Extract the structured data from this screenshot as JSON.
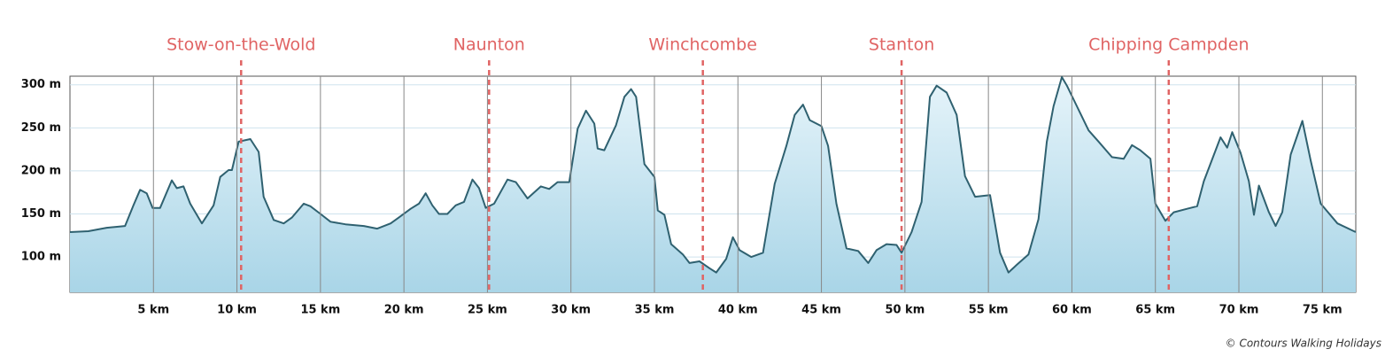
{
  "chart_data": {
    "type": "area",
    "x": [
      0,
      1.1,
      2.2,
      3.3,
      3.8,
      4.2,
      4.6,
      4.95,
      5.4,
      6.1,
      6.4,
      6.8,
      7.2,
      7.9,
      8.6,
      9.0,
      9.5,
      9.7,
      10.1,
      10.8,
      11.3,
      11.6,
      12.2,
      12.8,
      13.3,
      14.0,
      14.4,
      15.0,
      15.6,
      16.5,
      17.6,
      18.4,
      19.2,
      19.7,
      20.4,
      20.9,
      21.3,
      21.7,
      22.1,
      22.6,
      23.1,
      23.6,
      24.1,
      24.5,
      24.9,
      25.4,
      26.2,
      26.7,
      27.4,
      28.2,
      28.7,
      29.2,
      29.9,
      30.4,
      30.9,
      31.4,
      31.6,
      32.0,
      32.7,
      33.2,
      33.6,
      33.9,
      34.4,
      35.0,
      35.2,
      35.6,
      36.0,
      36.7,
      37.1,
      37.7,
      38.3,
      38.7,
      39.3,
      39.7,
      40.1,
      40.8,
      41.5,
      42.2,
      42.9,
      43.4,
      43.9,
      44.3,
      45.0,
      45.4,
      45.9,
      46.5,
      47.2,
      47.8,
      48.3,
      48.9,
      49.5,
      49.8,
      50.4,
      51.0,
      51.5,
      51.9,
      52.5,
      53.1,
      53.6,
      54.2,
      55.1,
      55.7,
      56.2,
      56.7,
      57.4,
      58.0,
      58.5,
      58.9,
      59.4,
      59.7,
      60.3,
      61.0,
      61.6,
      62.4,
      63.1,
      63.6,
      64.1,
      64.7,
      65.0,
      65.6,
      66.1,
      66.9,
      67.5,
      67.9,
      68.9,
      69.3,
      69.6,
      70.1,
      70.6,
      70.9,
      71.2,
      71.8,
      72.2,
      72.6,
      73.1,
      73.8,
      74.3,
      74.9,
      75.9,
      77.0
    ],
    "values": [
      129,
      130,
      134,
      136,
      160,
      178,
      174,
      157,
      157,
      189,
      180,
      182,
      162,
      139,
      160,
      193,
      201,
      201,
      234,
      237,
      222,
      170,
      143,
      139,
      146,
      162,
      159,
      150,
      141,
      138,
      136,
      133,
      139,
      146,
      156,
      162,
      174,
      160,
      150,
      150,
      160,
      164,
      190,
      180,
      157,
      162,
      190,
      187,
      168,
      182,
      179,
      187,
      187,
      249,
      270,
      255,
      226,
      224,
      253,
      286,
      295,
      286,
      208,
      193,
      154,
      149,
      115,
      103,
      93,
      95,
      87,
      82,
      98,
      123,
      108,
      100,
      105,
      185,
      229,
      265,
      277,
      259,
      252,
      229,
      162,
      110,
      107,
      93,
      108,
      115,
      114,
      105,
      129,
      164,
      286,
      299,
      291,
      265,
      194,
      170,
      172,
      105,
      82,
      91,
      103,
      144,
      234,
      275,
      309,
      299,
      275,
      247,
      234,
      216,
      214,
      230,
      224,
      214,
      162,
      142,
      152,
      156,
      159,
      188,
      239,
      227,
      245,
      221,
      188,
      149,
      183,
      152,
      136,
      152,
      219,
      258,
      212,
      162,
      139,
      129
    ],
    "color": "#2f6170",
    "xlim": [
      0,
      77
    ],
    "ylim": [
      59,
      310
    ],
    "xticks": [
      {
        "value": 5,
        "label": "5 km"
      },
      {
        "value": 10,
        "label": "10 km"
      },
      {
        "value": 15,
        "label": "15 km"
      },
      {
        "value": 20,
        "label": "20 km"
      },
      {
        "value": 25,
        "label": "25 km"
      },
      {
        "value": 30,
        "label": "30 km"
      },
      {
        "value": 35,
        "label": "35 km"
      },
      {
        "value": 40,
        "label": "40 km"
      },
      {
        "value": 45,
        "label": "45 km"
      },
      {
        "value": 50,
        "label": "50 km"
      },
      {
        "value": 55,
        "label": "55 km"
      },
      {
        "value": 60,
        "label": "60 km"
      },
      {
        "value": 65,
        "label": "65 km"
      },
      {
        "value": 70,
        "label": "70 km"
      },
      {
        "value": 75,
        "label": "75 km"
      }
    ],
    "yticks": [
      {
        "value": 100,
        "label": "100 m"
      },
      {
        "value": 150,
        "label": "150 m"
      },
      {
        "value": 200,
        "label": "200 m"
      },
      {
        "value": 250,
        "label": "250 m"
      },
      {
        "value": 300,
        "label": "300 m"
      }
    ],
    "markers": [
      {
        "label": "Stow-on-the-Wold",
        "x": 10.25
      },
      {
        "label": "Naunton",
        "x": 25.1
      },
      {
        "label": "Winchcombe",
        "x": 37.9
      },
      {
        "label": "Stanton",
        "x": 49.8
      },
      {
        "label": "Chipping Campden",
        "x": 65.8
      }
    ],
    "marker_color": "#e06464",
    "credit": "© Contours Walking Holidays"
  }
}
